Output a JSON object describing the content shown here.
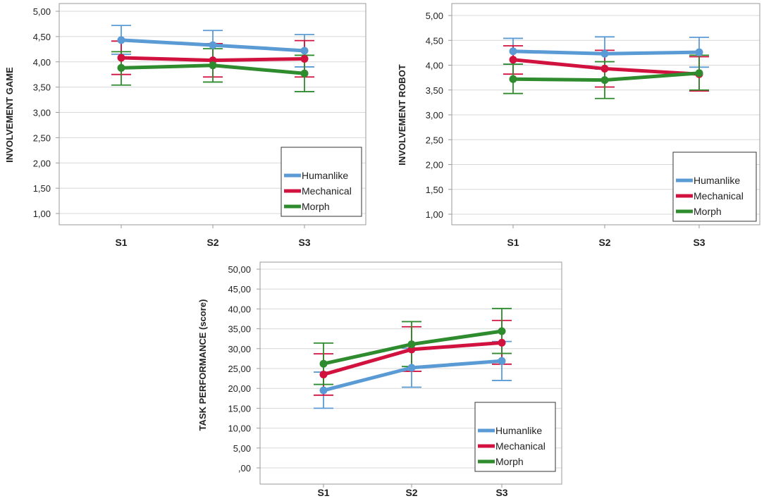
{
  "chart_data": [
    {
      "id": "game",
      "type": "line",
      "ylabel": "INVOLVEMENT GAME",
      "categories": [
        "S1",
        "S2",
        "S3"
      ],
      "ylim": [
        1.0,
        5.0
      ],
      "yticks": [
        "1,00",
        "1,50",
        "2,00",
        "2,50",
        "3,00",
        "3,50",
        "4,00",
        "4,50",
        "5,00"
      ],
      "ytick_values": [
        1.0,
        1.5,
        2.0,
        2.5,
        3.0,
        3.5,
        4.0,
        4.5,
        5.0
      ],
      "grid": true,
      "legend_position": "bottom-right",
      "series": [
        {
          "name": "Humanlike",
          "color": "#5b9bd5",
          "values": [
            4.43,
            4.33,
            4.22
          ],
          "err_low": [
            4.15,
            4.04,
            3.9
          ],
          "err_high": [
            4.72,
            4.62,
            4.54
          ]
        },
        {
          "name": "Mechanical",
          "color": "#d1123f",
          "values": [
            4.08,
            4.03,
            4.06
          ],
          "err_low": [
            3.75,
            3.7,
            3.7
          ],
          "err_high": [
            4.41,
            4.36,
            4.42
          ]
        },
        {
          "name": "Morph",
          "color": "#2e8b2e",
          "values": [
            3.88,
            3.93,
            3.77
          ],
          "err_low": [
            3.54,
            3.6,
            3.41
          ],
          "err_high": [
            4.2,
            4.26,
            4.13
          ]
        }
      ]
    },
    {
      "id": "robot",
      "type": "line",
      "ylabel": "INVOLVEMENT ROBOT",
      "categories": [
        "S1",
        "S2",
        "S3"
      ],
      "ylim": [
        1.0,
        5.0
      ],
      "yticks": [
        "1,00",
        "1,50",
        "2,00",
        "2,50",
        "3,00",
        "3,50",
        "4,00",
        "4,50",
        "5,00"
      ],
      "ytick_values": [
        1.0,
        1.5,
        2.0,
        2.5,
        3.0,
        3.5,
        4.0,
        4.5,
        5.0
      ],
      "grid": true,
      "legend_position": "bottom-right",
      "series": [
        {
          "name": "Humanlike",
          "color": "#5b9bd5",
          "values": [
            4.28,
            4.23,
            4.26
          ],
          "err_low": [
            4.02,
            3.92,
            3.96
          ],
          "err_high": [
            4.54,
            4.57,
            4.56
          ]
        },
        {
          "name": "Mechanical",
          "color": "#d1123f",
          "values": [
            4.11,
            3.93,
            3.82
          ],
          "err_low": [
            3.82,
            3.56,
            3.48
          ],
          "err_high": [
            4.39,
            4.3,
            4.17
          ]
        },
        {
          "name": "Morph",
          "color": "#2e8b2e",
          "values": [
            3.72,
            3.7,
            3.84
          ],
          "err_low": [
            3.43,
            3.33,
            3.5
          ],
          "err_high": [
            4.02,
            4.07,
            4.2
          ]
        }
      ]
    },
    {
      "id": "task",
      "type": "line",
      "ylabel": "TASK PERFORMANCE (score)",
      "categories": [
        "S1",
        "S2",
        "S3"
      ],
      "ylim": [
        0,
        50
      ],
      "yticks": [
        ",00",
        "5,00",
        "10,00",
        "15,00",
        "20,00",
        "25,00",
        "30,00",
        "35,00",
        "40,00",
        "45,00",
        "50,00"
      ],
      "ytick_values": [
        0,
        5,
        10,
        15,
        20,
        25,
        30,
        35,
        40,
        45,
        50
      ],
      "grid": true,
      "legend_position": "bottom-right",
      "series": [
        {
          "name": "Humanlike",
          "color": "#5b9bd5",
          "values": [
            19.5,
            25.2,
            26.9
          ],
          "err_low": [
            15.0,
            20.3,
            22.0
          ],
          "err_high": [
            24.1,
            30.1,
            31.8
          ]
        },
        {
          "name": "Mechanical",
          "color": "#d1123f",
          "values": [
            23.5,
            29.8,
            31.5
          ],
          "err_low": [
            18.3,
            24.3,
            26.1
          ],
          "err_high": [
            28.7,
            35.5,
            37.1
          ]
        },
        {
          "name": "Morph",
          "color": "#2e8b2e",
          "values": [
            26.2,
            31.1,
            34.4
          ],
          "err_low": [
            21.0,
            25.5,
            28.8
          ],
          "err_high": [
            31.4,
            36.8,
            40.1
          ]
        }
      ]
    }
  ]
}
